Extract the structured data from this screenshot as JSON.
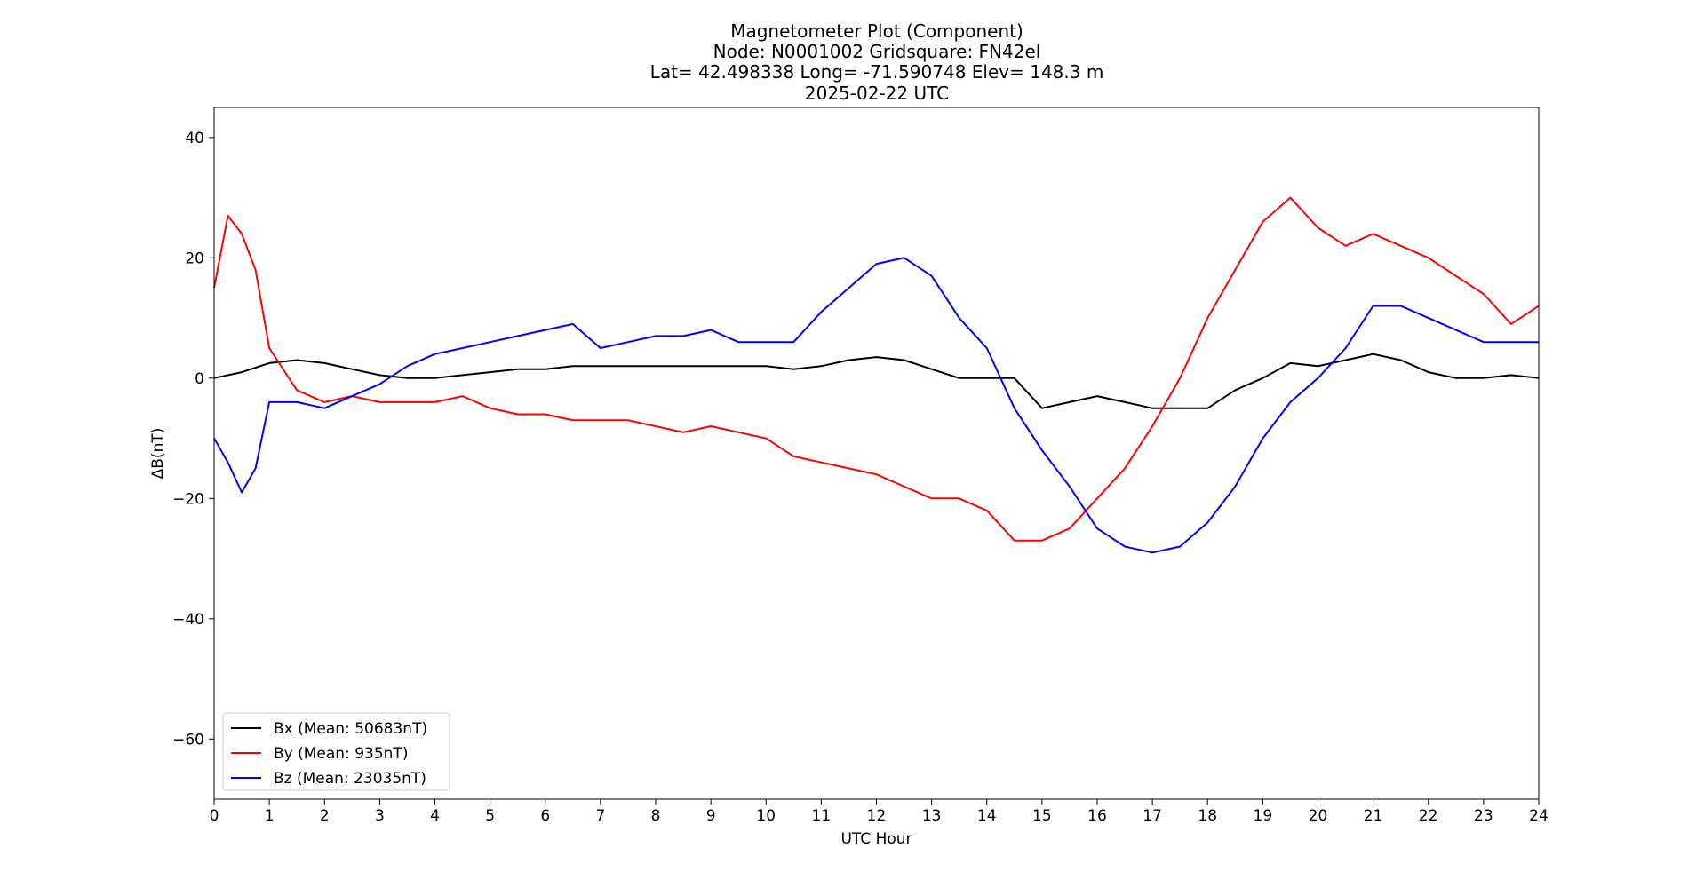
{
  "chart_data": {
    "type": "line",
    "title_lines": [
      "Magnetometer Plot (Component)",
      "Node:  N0001002     Gridsquare:  FN42el",
      "Lat= 42.498338    Long= -71.590748    Elev= 148.3 m",
      "2025-02-22  UTC"
    ],
    "xlabel": "UTC Hour",
    "ylabel": "ΔB(nT)",
    "xlim": [
      0,
      24
    ],
    "ylim": [
      -70,
      45
    ],
    "xticks": [
      0,
      1,
      2,
      3,
      4,
      5,
      6,
      7,
      8,
      9,
      10,
      11,
      12,
      13,
      14,
      15,
      16,
      17,
      18,
      19,
      20,
      21,
      22,
      23,
      24
    ],
    "yticks": [
      40,
      20,
      0,
      -20,
      -40,
      -60
    ],
    "ytick_labels": [
      "40",
      "20",
      "0",
      "−20",
      "−40",
      "−60"
    ],
    "grid": false,
    "legend_position": "lower-left",
    "series": [
      {
        "name": "Bx (Mean: 50683nT)",
        "color": "#000000",
        "x": [
          0,
          0.5,
          1,
          1.5,
          2,
          2.5,
          3,
          3.5,
          4,
          4.5,
          5,
          5.5,
          6,
          6.5,
          7,
          7.5,
          8,
          8.5,
          9,
          9.5,
          10,
          10.5,
          11,
          11.5,
          12,
          12.5,
          13,
          13.5,
          14,
          14.5,
          15,
          15.5,
          16,
          16.5,
          17,
          17.5,
          18,
          18.5,
          19,
          19.5,
          20,
          20.5,
          21,
          21.5,
          22,
          22.5,
          23,
          23.5,
          24
        ],
        "y": [
          0,
          1,
          2.5,
          3,
          2.5,
          1.5,
          0.5,
          0,
          0,
          0.5,
          1,
          1.5,
          1.5,
          2,
          2,
          2,
          2,
          2,
          2,
          2,
          2,
          1.5,
          2,
          3,
          3.5,
          3,
          1.5,
          0,
          0,
          0,
          -5,
          -4,
          -3,
          -4,
          -5,
          -5,
          -5,
          -2,
          0,
          2.5,
          2,
          3,
          4,
          3,
          1,
          0,
          0,
          0.5,
          0
        ]
      },
      {
        "name": "By (Mean: 935nT)",
        "color": "#ff0000",
        "x": [
          0,
          0.25,
          0.5,
          0.75,
          1,
          1.5,
          2,
          2.5,
          3,
          3.5,
          4,
          4.5,
          5,
          5.5,
          6,
          6.5,
          7,
          7.5,
          8,
          8.5,
          9,
          9.5,
          10,
          10.5,
          11,
          11.5,
          12,
          12.5,
          13,
          13.5,
          14,
          14.5,
          15,
          15.5,
          16,
          16.5,
          17,
          17.5,
          18,
          18.5,
          19,
          19.5,
          20,
          20.5,
          21,
          21.5,
          22,
          22.5,
          23,
          23.5,
          24
        ],
        "y": [
          15,
          27,
          24,
          18,
          5,
          -2,
          -4,
          -3,
          -4,
          -4,
          -4,
          -3,
          -5,
          -6,
          -6,
          -7,
          -7,
          -7,
          -8,
          -9,
          -8,
          -9,
          -10,
          -13,
          -14,
          -15,
          -16,
          -18,
          -20,
          -20,
          -22,
          -27,
          -27,
          -25,
          -20,
          -15,
          -8,
          0,
          10,
          18,
          26,
          30,
          25,
          22,
          24,
          22,
          20,
          17,
          14,
          9,
          12
        ]
      },
      {
        "name": "Bz (Mean: 23035nT)",
        "color": "#0000ff",
        "x": [
          0,
          0.25,
          0.5,
          0.75,
          1,
          1.5,
          2,
          2.5,
          3,
          3.5,
          4,
          4.5,
          5,
          5.5,
          6,
          6.5,
          7,
          7.5,
          8,
          8.5,
          9,
          9.5,
          10,
          10.5,
          11,
          11.5,
          12,
          12.5,
          13,
          13.5,
          14,
          14.5,
          15,
          15.5,
          16,
          16.5,
          17,
          17.5,
          18,
          18.5,
          19,
          19.5,
          20,
          20.5,
          21,
          21.5,
          22,
          22.5,
          23,
          23.5,
          24
        ],
        "y": [
          -10,
          -14,
          -19,
          -15,
          -4,
          -4,
          -5,
          -3,
          -1,
          2,
          4,
          5,
          6,
          7,
          8,
          9,
          5,
          6,
          7,
          7,
          8,
          6,
          6,
          6,
          11,
          15,
          19,
          20,
          17,
          10,
          5,
          -5,
          -12,
          -18,
          -25,
          -28,
          -29,
          -28,
          -24,
          -18,
          -10,
          -4,
          0,
          5,
          12,
          12,
          10,
          8,
          6,
          6,
          6
        ]
      }
    ]
  }
}
